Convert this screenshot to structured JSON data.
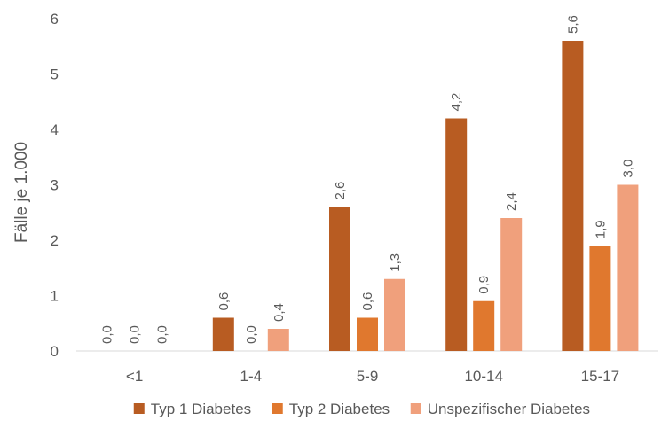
{
  "chart_data": {
    "type": "bar",
    "title": "",
    "xlabel": "",
    "ylabel": "Fälle je 1.000",
    "ylim": [
      0,
      6
    ],
    "yticks": [
      "0",
      "1",
      "2",
      "3",
      "4",
      "5",
      "6"
    ],
    "grid": false,
    "legend_position": "bottom",
    "categories": [
      "<1",
      "1-4",
      "5-9",
      "10-14",
      "15-17"
    ],
    "series": [
      {
        "name": "Typ 1 Diabetes",
        "color": "#b85c22",
        "values": [
          0.0,
          0.6,
          2.6,
          4.2,
          5.6
        ],
        "labels": [
          "0,0",
          "0,6",
          "2,6",
          "4,2",
          "5,6"
        ]
      },
      {
        "name": "Typ 2 Diabetes",
        "color": "#e0782e",
        "values": [
          0.0,
          0.0,
          0.6,
          0.9,
          1.9
        ],
        "labels": [
          "0,0",
          "0,0",
          "0,6",
          "0,9",
          "1,9"
        ]
      },
      {
        "name": "Unspezifischer Diabetes",
        "color": "#f0a07c",
        "values": [
          0.0,
          0.4,
          1.3,
          2.4,
          3.0
        ],
        "labels": [
          "0,0",
          "0,4",
          "1,3",
          "2,4",
          "3,0"
        ]
      }
    ]
  }
}
